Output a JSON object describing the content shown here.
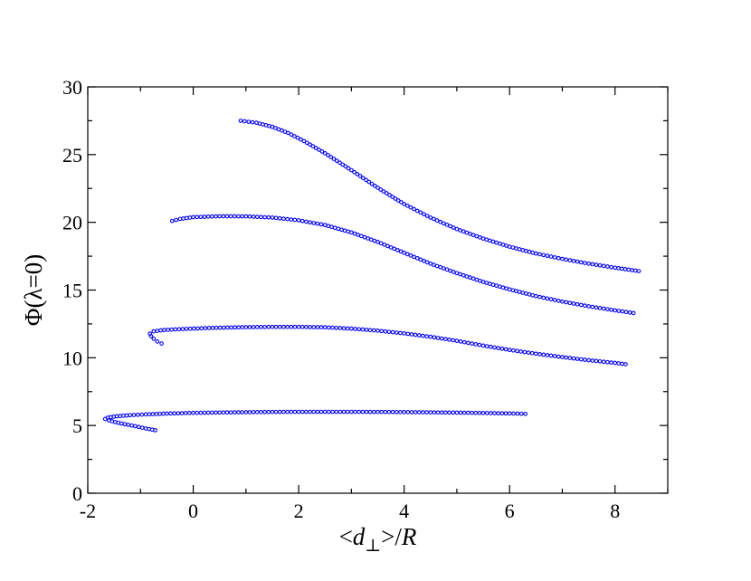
{
  "chart_data": {
    "type": "scatter",
    "title": "",
    "xlabel": {
      "lt": "<",
      "var": "d",
      "sub": "⊥",
      "gt": ">",
      "slash": "/",
      "r": "R"
    },
    "ylabel": {
      "phi": "Φ(",
      "lambda": "λ",
      "rest": "=0)"
    },
    "xlim": [
      -2,
      9
    ],
    "ylim": [
      0,
      30
    ],
    "x_ticks": [
      -2,
      0,
      2,
      4,
      6,
      8
    ],
    "y_ticks": [
      0,
      5,
      10,
      15,
      20,
      25,
      30
    ],
    "marker_color": "#0000ff",
    "grid": false,
    "series": [
      {
        "points": [
          [
            -0.72,
            4.65
          ],
          [
            -0.9,
            4.78
          ],
          [
            -1.1,
            4.95
          ],
          [
            -1.3,
            5.1
          ],
          [
            -1.48,
            5.25
          ],
          [
            -1.6,
            5.38
          ],
          [
            -1.67,
            5.48
          ],
          [
            -1.62,
            5.58
          ],
          [
            -1.45,
            5.68
          ],
          [
            -1.2,
            5.76
          ],
          [
            -0.9,
            5.82
          ],
          [
            -0.5,
            5.88
          ],
          [
            0.0,
            5.93
          ],
          [
            0.5,
            5.96
          ],
          [
            1.0,
            5.98
          ],
          [
            1.5,
            6.0
          ],
          [
            2.0,
            6.01
          ],
          [
            2.5,
            6.01
          ],
          [
            3.0,
            6.01
          ],
          [
            3.5,
            6.0
          ],
          [
            4.0,
            5.99
          ],
          [
            4.5,
            5.97
          ],
          [
            5.0,
            5.95
          ],
          [
            5.5,
            5.92
          ],
          [
            6.0,
            5.89
          ],
          [
            6.3,
            5.86
          ]
        ]
      },
      {
        "points": [
          [
            -0.6,
            11.05
          ],
          [
            -0.68,
            11.2
          ],
          [
            -0.75,
            11.4
          ],
          [
            -0.8,
            11.6
          ],
          [
            -0.82,
            11.78
          ],
          [
            -0.75,
            11.95
          ],
          [
            -0.55,
            12.05
          ],
          [
            -0.2,
            12.12
          ],
          [
            0.3,
            12.2
          ],
          [
            1.0,
            12.26
          ],
          [
            1.5,
            12.28
          ],
          [
            2.0,
            12.28
          ],
          [
            2.5,
            12.25
          ],
          [
            3.0,
            12.15
          ],
          [
            3.5,
            12.0
          ],
          [
            4.0,
            11.8
          ],
          [
            4.5,
            11.55
          ],
          [
            5.0,
            11.25
          ],
          [
            5.5,
            10.9
          ],
          [
            6.0,
            10.58
          ],
          [
            6.5,
            10.3
          ],
          [
            7.0,
            10.05
          ],
          [
            7.5,
            9.82
          ],
          [
            8.0,
            9.62
          ],
          [
            8.2,
            9.52
          ]
        ]
      },
      {
        "points": [
          [
            -0.4,
            20.1
          ],
          [
            -0.25,
            20.25
          ],
          [
            0.0,
            20.38
          ],
          [
            0.5,
            20.45
          ],
          [
            1.0,
            20.44
          ],
          [
            1.5,
            20.35
          ],
          [
            2.0,
            20.15
          ],
          [
            2.5,
            19.8
          ],
          [
            3.0,
            19.25
          ],
          [
            3.5,
            18.55
          ],
          [
            4.0,
            17.75
          ],
          [
            4.5,
            16.95
          ],
          [
            5.0,
            16.25
          ],
          [
            5.5,
            15.6
          ],
          [
            6.0,
            15.05
          ],
          [
            6.5,
            14.55
          ],
          [
            7.0,
            14.15
          ],
          [
            7.5,
            13.8
          ],
          [
            8.0,
            13.5
          ],
          [
            8.35,
            13.3
          ]
        ]
      },
      {
        "points": [
          [
            0.9,
            27.5
          ],
          [
            1.2,
            27.35
          ],
          [
            1.5,
            27.05
          ],
          [
            1.8,
            26.6
          ],
          [
            2.1,
            26.0
          ],
          [
            2.5,
            25.1
          ],
          [
            3.0,
            23.85
          ],
          [
            3.5,
            22.55
          ],
          [
            4.0,
            21.35
          ],
          [
            4.5,
            20.35
          ],
          [
            5.0,
            19.5
          ],
          [
            5.5,
            18.8
          ],
          [
            6.0,
            18.2
          ],
          [
            6.5,
            17.7
          ],
          [
            7.0,
            17.3
          ],
          [
            7.5,
            16.95
          ],
          [
            8.0,
            16.65
          ],
          [
            8.45,
            16.4
          ]
        ]
      }
    ]
  }
}
